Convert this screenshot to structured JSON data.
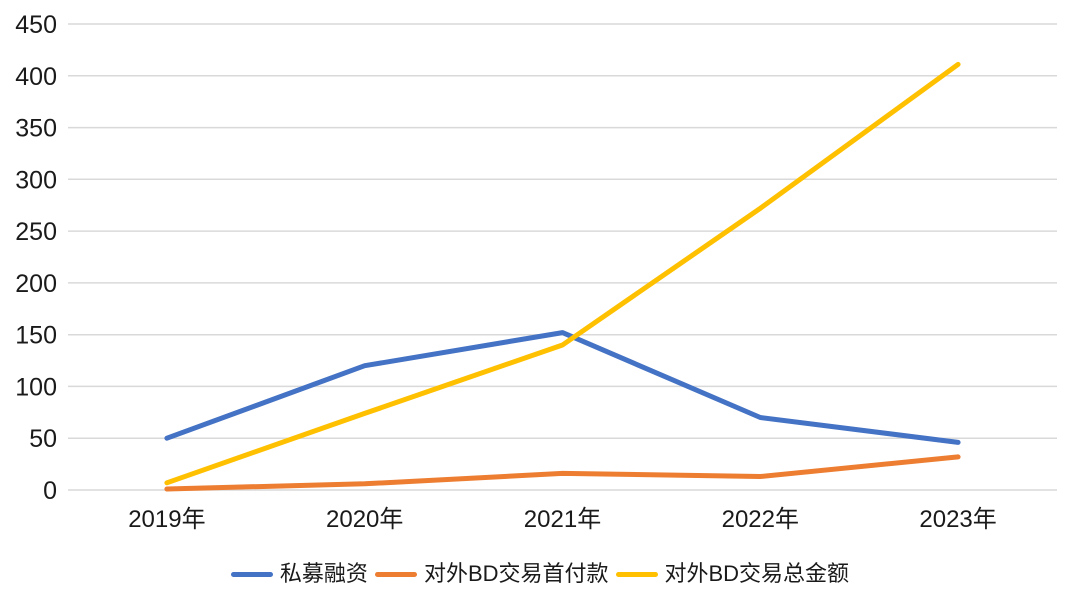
{
  "chart_data": {
    "type": "line",
    "categories": [
      "2019年",
      "2020年",
      "2021年",
      "2022年",
      "2023年"
    ],
    "series": [
      {
        "name": "私募融资",
        "color": "#4472C4",
        "values": [
          50,
          120,
          152,
          70,
          46
        ]
      },
      {
        "name": "对外BD交易首付款",
        "color": "#ED7D31",
        "values": [
          1,
          6,
          16,
          13,
          32
        ]
      },
      {
        "name": "对外BD交易总金额",
        "color": "#FFC000",
        "values": [
          7,
          74,
          140,
          272,
          411
        ]
      }
    ],
    "yticks": [
      0,
      50,
      100,
      150,
      200,
      250,
      300,
      350,
      400,
      450
    ],
    "ylim": [
      0,
      450
    ],
    "grid": true,
    "legend_position": "bottom",
    "gridline_color": "#D9D9D9",
    "text_color": "#1A1A1A",
    "background": "#FFFFFF"
  }
}
